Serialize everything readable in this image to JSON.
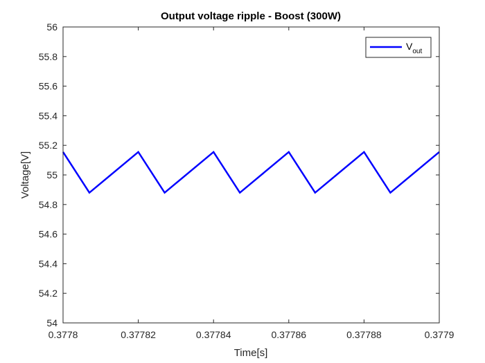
{
  "chart_data": {
    "type": "line",
    "title": "Output voltage ripple - Boost (300W)",
    "xlabel": "Time[s]",
    "ylabel": "Voltage[V]",
    "xlim": [
      0.3778,
      0.3779
    ],
    "ylim": [
      54,
      56
    ],
    "x_ticks": [
      "0.3778",
      "0.37782",
      "0.37784",
      "0.37786",
      "0.37788",
      "0.3779"
    ],
    "x_tick_values": [
      0.3778,
      0.37782,
      0.37784,
      0.37786,
      0.37788,
      0.3779
    ],
    "y_ticks": [
      "54",
      "54.2",
      "54.4",
      "54.6",
      "54.8",
      "55",
      "55.2",
      "55.4",
      "55.6",
      "55.8",
      "56"
    ],
    "y_tick_values": [
      54,
      54.2,
      54.4,
      54.6,
      54.8,
      55,
      55.2,
      55.4,
      55.6,
      55.8,
      56
    ],
    "grid": false,
    "legend_position": "top-right",
    "legend": {
      "main": "V",
      "sub": "out"
    },
    "series": [
      {
        "name": "Vout",
        "color": "#0000ff",
        "x": [
          0.3778,
          0.377807,
          0.37782,
          0.377827,
          0.37784,
          0.377847,
          0.37786,
          0.377867,
          0.37788,
          0.377887,
          0.3779
        ],
        "values": [
          55.155,
          54.88,
          55.155,
          54.88,
          55.155,
          54.88,
          55.155,
          54.88,
          55.155,
          54.88,
          55.155
        ]
      }
    ]
  }
}
